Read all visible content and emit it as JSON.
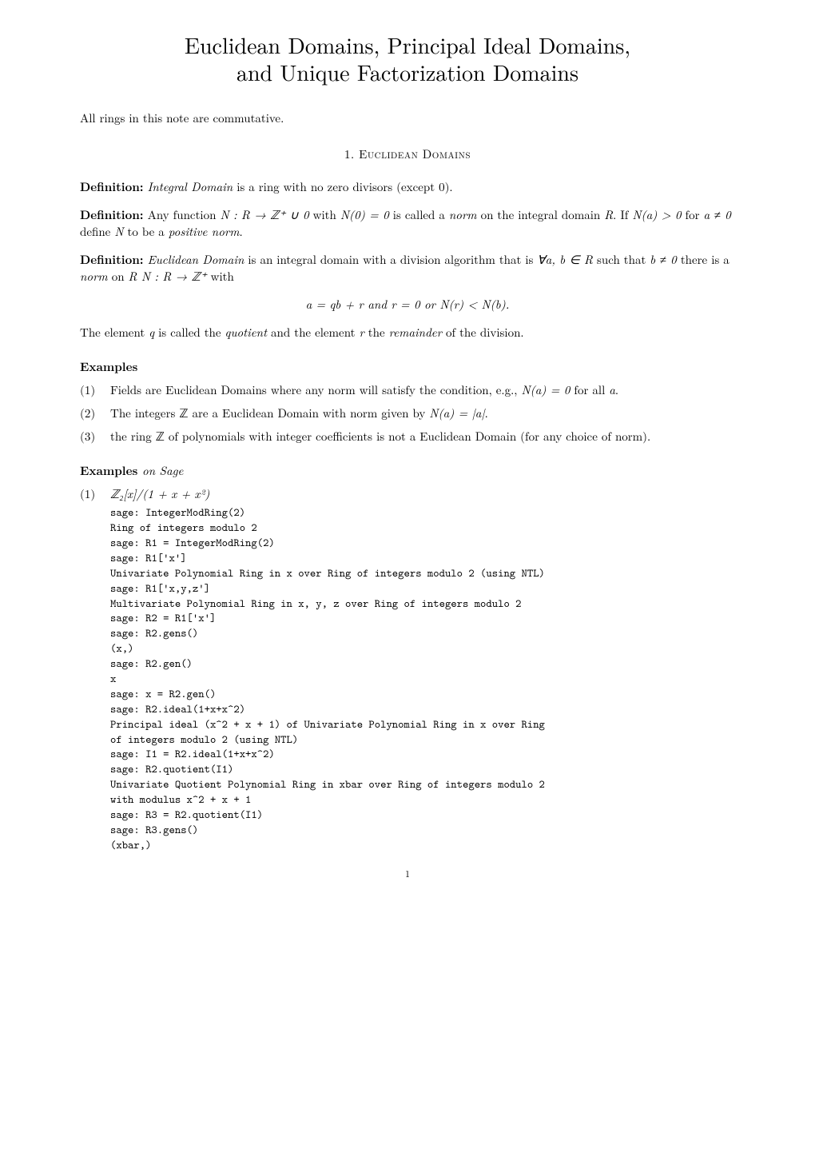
{
  "title_line1": "Euclidean Domains, Principal Ideal Domains,",
  "title_line2": "and Unique Factorization Domains",
  "intro": "All rings in this note are commutative.",
  "section1_heading": "1. Euclidean Domains",
  "def1_label": "Definition:",
  "def1_term": "Integral Domain",
  "def1_rest": " is a ring with no zero divisors (except 0).",
  "def2_label": "Definition:",
  "def2_text_a": " Any function ",
  "def2_math1": "N : R → ℤ⁺ ∪ 0",
  "def2_text_b": " with ",
  "def2_math2": "N(0) = 0",
  "def2_text_c": " is called a ",
  "def2_term": "norm",
  "def2_text_d": " on the integral domain ",
  "def2_math3": "R",
  "def2_text_e": ". If ",
  "def2_math4": "N(a) > 0",
  "def2_text_f": " for ",
  "def2_math5": "a ≠ 0",
  "def2_text_g": " define ",
  "def2_math6": "N",
  "def2_text_h": " to be a ",
  "def2_term2": "positive norm",
  "def2_text_i": ".",
  "def3_label": "Definition:",
  "def3_term": "Euclidean Domain",
  "def3_text_a": " is an integral domain with a division algorithm that is ",
  "def3_math1": "∀a, b ∈ R",
  "def3_text_b": " such that ",
  "def3_math2": "b ≠ 0",
  "def3_text_c": " there is a ",
  "def3_term2": "norm",
  "def3_text_d": " on ",
  "def3_math3": "R  N : R → ℤ⁺",
  "def3_text_e": " with",
  "eq1": "a = qb + r        and r = 0 or N(r) < N(b).",
  "quot_text_a": "The element ",
  "quot_math1": "q",
  "quot_text_b": " is called the ",
  "quot_term1": "quotient",
  "quot_text_c": " and the element ",
  "quot_math2": "r",
  "quot_text_d": " the ",
  "quot_term2": "remainder",
  "quot_text_e": " of the division.",
  "examples_heading": "Examples",
  "ex1_num": "(1)",
  "ex1_text_a": "Fields are Euclidean Domains where any norm will satisfy the condition, e.g., ",
  "ex1_math1": "N(a) = 0",
  "ex1_text_b": " for all ",
  "ex1_math2": "a",
  "ex1_text_c": ".",
  "ex2_num": "(2)",
  "ex2_text_a": "The integers ℤ are a Euclidean Domain with norm given by ",
  "ex2_math1": "N(a) = |a|",
  "ex2_text_b": ".",
  "ex3_num": "(3)",
  "ex3_text": "the ring ℤ of polynomials with integer coefficients is not a Euclidean Domain (for any choice of norm).",
  "examples2_label": "Examples",
  "examples2_ital": "on Sage",
  "sage1_num": "(1)",
  "sage1_math": "ℤ₂[x]/(1 + x + x²)",
  "code": "sage: IntegerModRing(2)\nRing of integers modulo 2\nsage: R1 = IntegerModRing(2)\nsage: R1['x']\nUnivariate Polynomial Ring in x over Ring of integers modulo 2 (using NTL)\nsage: R1['x,y,z']\nMultivariate Polynomial Ring in x, y, z over Ring of integers modulo 2\nsage: R2 = R1['x']\nsage: R2.gens()\n(x,)\nsage: R2.gen()\nx\nsage: x = R2.gen()\nsage: R2.ideal(1+x+x^2)\nPrincipal ideal (x^2 + x + 1) of Univariate Polynomial Ring in x over Ring\nof integers modulo 2 (using NTL)\nsage: I1 = R2.ideal(1+x+x^2)\nsage: R2.quotient(I1)\nUnivariate Quotient Polynomial Ring in xbar over Ring of integers modulo 2\nwith modulus x^2 + x + 1\nsage: R3 = R2.quotient(I1)\nsage: R3.gens()\n(xbar,)",
  "page_number": "1"
}
